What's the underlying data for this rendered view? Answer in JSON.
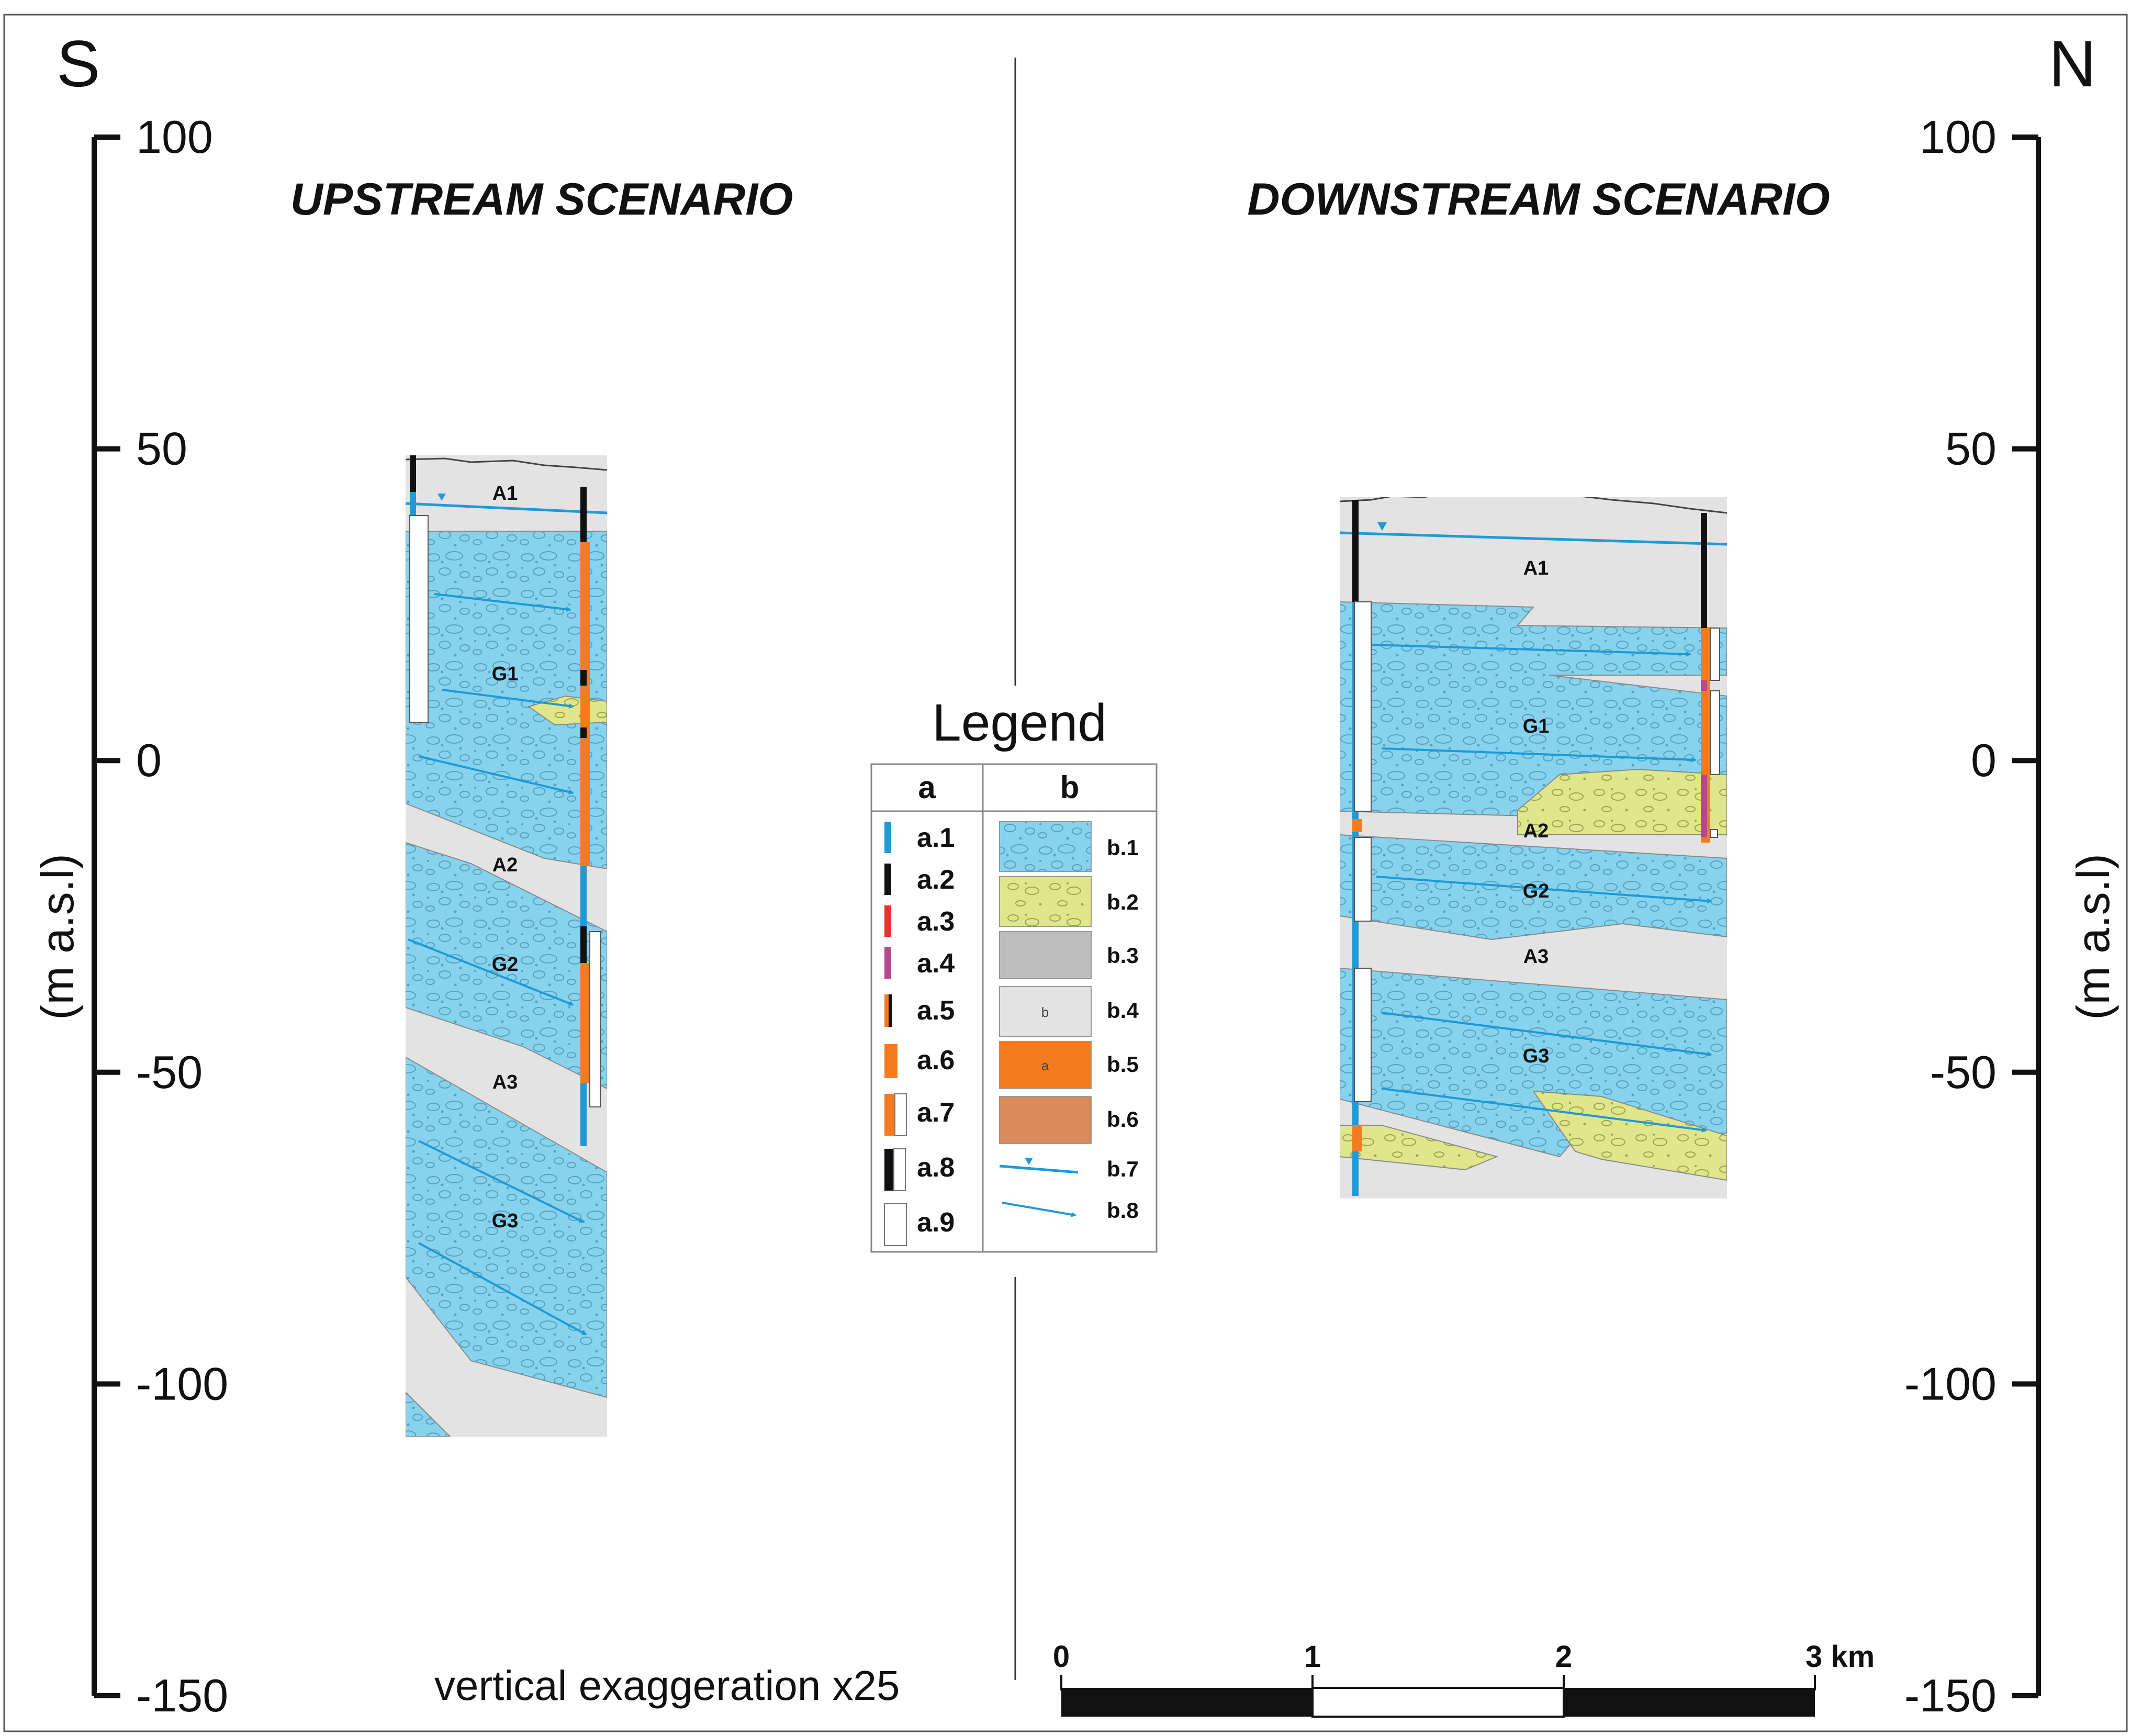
{
  "compass": {
    "south": "S",
    "north": "N"
  },
  "axis": {
    "unit_label": "(m a.s.l)",
    "ticks": [
      100,
      50,
      0,
      -50,
      -100,
      -150
    ],
    "tick_labels": [
      "100",
      "50",
      "0",
      "-50",
      "-100",
      "-150"
    ]
  },
  "upstream": {
    "title": "UPSTREAM SCENARIO",
    "layer_labels": [
      "A1",
      "G1",
      "A2",
      "G2",
      "A3",
      "G3"
    ]
  },
  "downstream": {
    "title": "DOWNSTREAM SCENARIO",
    "layer_labels": [
      "A1",
      "G1",
      "A2",
      "G2",
      "A3",
      "G3"
    ]
  },
  "legend": {
    "title": "Legend",
    "col_a_header": "a",
    "col_b_header": "b",
    "a_items": [
      {
        "label": "a.1",
        "color": "#1f9ad6"
      },
      {
        "label": "a.2",
        "color": "#111111"
      },
      {
        "label": "a.3",
        "color": "#e8322d"
      },
      {
        "label": "a.4",
        "color": "#b5478f"
      },
      {
        "label": "a.5",
        "color": "#f47b20"
      },
      {
        "label": "a.6",
        "color": "#f47b20"
      },
      {
        "label": "a.7",
        "color": "#f47b20"
      },
      {
        "label": "a.8",
        "color": "#111111"
      },
      {
        "label": "a.9",
        "color": "#ffffff"
      }
    ],
    "b_items": [
      {
        "label": "b.1",
        "color": "#87d3ee"
      },
      {
        "label": "b.2",
        "color": "#dfe68b"
      },
      {
        "label": "b.3",
        "color": "#bdbdbd"
      },
      {
        "label": "b.4",
        "color": "#e3e3e3",
        "inner": "b"
      },
      {
        "label": "b.5",
        "color": "#f47b20",
        "inner": "a"
      },
      {
        "label": "b.6",
        "color": "#d9895a"
      },
      {
        "label": "b.7",
        "color": "#1f9ad6"
      },
      {
        "label": "b.8",
        "color": "#1f9ad6"
      }
    ]
  },
  "footer": {
    "exaggeration": "vertical exaggeration x25",
    "scale_labels": [
      "0",
      "1",
      "2",
      "3 km"
    ]
  }
}
